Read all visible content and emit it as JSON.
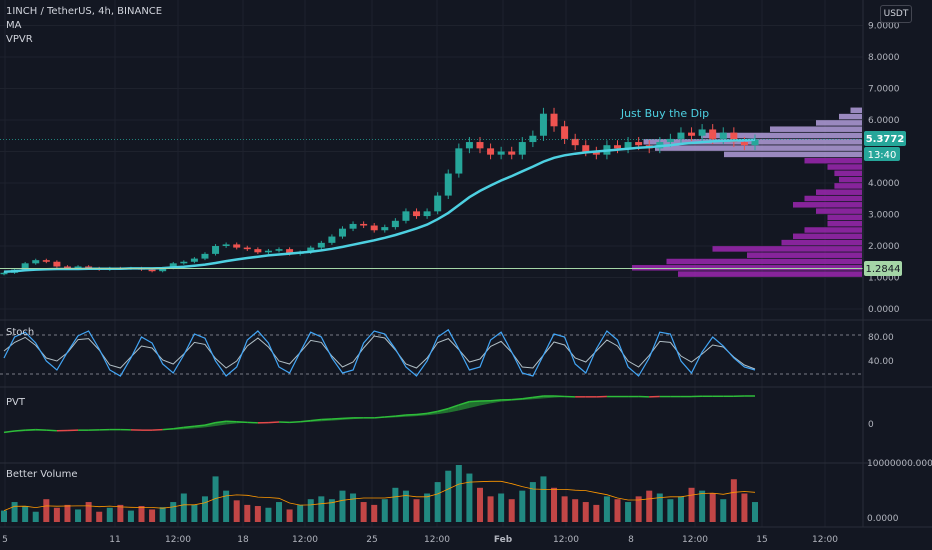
{
  "header": {
    "title": "1INCH / TetherUS, 4h, BINANCE",
    "indicators": [
      "MA",
      "VPVR"
    ],
    "currency_button": "USDT"
  },
  "annotation": "Just Buy the Dip",
  "price_labels": {
    "last": "5.3772",
    "countdown": "13:40",
    "ma_line": "1.2844"
  },
  "panes": {
    "stoch": "Stoch",
    "pvt": "PVT",
    "volume": "Better Volume"
  },
  "colors": {
    "up": "#26a69a",
    "down": "#ef5350",
    "ma": "#4dd0e1",
    "vpvr": "#9c27b0",
    "pvt_up": "#2ebd3a",
    "pvt_down": "#e24a4a",
    "bg": "#131722"
  },
  "chart_data": [
    {
      "type": "candlestick",
      "name": "price",
      "y_ticks": [
        "9.0000",
        "8.0000",
        "7.0000",
        "6.0000",
        "5.0000",
        "4.0000",
        "3.0000",
        "2.0000",
        "1.0000",
        "0.0000"
      ],
      "ylim": [
        0,
        9.5
      ],
      "x_tick_labels": [
        "5",
        "11",
        "12:00",
        "18",
        "12:00",
        "25",
        "12:00",
        "Feb",
        "12:00",
        "8",
        "12:00",
        "15",
        "12:00"
      ],
      "close": [
        1.15,
        1.25,
        1.45,
        1.55,
        1.5,
        1.35,
        1.3,
        1.35,
        1.3,
        1.25,
        1.3,
        1.28,
        1.3,
        1.25,
        1.2,
        1.3,
        1.45,
        1.5,
        1.6,
        1.75,
        2.0,
        2.05,
        1.95,
        1.9,
        1.8,
        1.85,
        1.9,
        1.75,
        1.8,
        1.95,
        2.1,
        2.3,
        2.55,
        2.7,
        2.65,
        2.5,
        2.6,
        2.8,
        3.1,
        2.95,
        3.1,
        3.6,
        4.3,
        5.1,
        5.3,
        5.1,
        4.9,
        5.0,
        4.9,
        5.3,
        5.5,
        6.2,
        5.8,
        5.4,
        5.2,
        5.0,
        4.9,
        5.2,
        5.1,
        5.3,
        5.2,
        5.1,
        5.3,
        5.4,
        5.6,
        5.5,
        5.7,
        5.4,
        5.6,
        5.3,
        5.2,
        5.38
      ],
      "ma": [
        1.18,
        1.2,
        1.23,
        1.25,
        1.26,
        1.27,
        1.27,
        1.27,
        1.28,
        1.28,
        1.28,
        1.28,
        1.29,
        1.29,
        1.29,
        1.3,
        1.32,
        1.34,
        1.37,
        1.41,
        1.46,
        1.52,
        1.57,
        1.62,
        1.66,
        1.7,
        1.73,
        1.76,
        1.79,
        1.82,
        1.86,
        1.91,
        1.97,
        2.04,
        2.11,
        2.18,
        2.26,
        2.35,
        2.45,
        2.56,
        2.68,
        2.85,
        3.05,
        3.3,
        3.55,
        3.75,
        3.92,
        4.08,
        4.22,
        4.37,
        4.52,
        4.68,
        4.8,
        4.88,
        4.93,
        4.97,
        5.0,
        5.03,
        5.06,
        5.09,
        5.12,
        5.14,
        5.17,
        5.2,
        5.24,
        5.27,
        5.3,
        5.32,
        5.34,
        5.35,
        5.36,
        5.37
      ],
      "last_price": "5.3772",
      "horizontal_line": 1.2844,
      "annotation": "Just Buy the Dip"
    },
    {
      "type": "bar",
      "name": "VPVR",
      "levels": [
        6.3,
        6.1,
        5.9,
        5.7,
        5.5,
        5.3,
        5.1,
        4.9,
        4.7,
        4.5,
        4.3,
        4.1,
        3.9,
        3.7,
        3.5,
        3.3,
        3.1,
        2.9,
        2.7,
        2.5,
        2.3,
        2.1,
        1.9,
        1.7,
        1.5,
        1.3,
        1.1
      ],
      "volumes": [
        5,
        10,
        20,
        40,
        70,
        95,
        90,
        60,
        25,
        15,
        12,
        10,
        12,
        20,
        25,
        30,
        20,
        15,
        15,
        25,
        30,
        35,
        65,
        50,
        85,
        100,
        80
      ]
    },
    {
      "type": "line",
      "name": "Stoch",
      "y_ticks": [
        "80.00",
        "40.00"
      ],
      "ylim": [
        0,
        100
      ],
      "k": [
        45,
        80,
        88,
        70,
        40,
        25,
        55,
        82,
        90,
        60,
        25,
        15,
        45,
        80,
        70,
        35,
        20,
        50,
        85,
        78,
        40,
        15,
        30,
        75,
        90,
        70,
        30,
        20,
        55,
        88,
        80,
        45,
        20,
        25,
        70,
        90,
        85,
        60,
        30,
        15,
        40,
        80,
        92,
        60,
        25,
        30,
        75,
        88,
        55,
        20,
        15,
        50,
        85,
        80,
        35,
        20,
        60,
        90,
        75,
        30,
        15,
        45,
        88,
        85,
        40,
        20,
        55,
        80,
        65,
        45,
        30,
        25
      ]
    },
    {
      "type": "area",
      "name": "PVT",
      "y_ticks": [
        "0"
      ],
      "values": [
        -30,
        -25,
        -22,
        -20,
        -22,
        -24,
        -23,
        -22,
        -22,
        -21,
        -20,
        -20,
        -21,
        -22,
        -22,
        -20,
        -17,
        -12,
        -8,
        -4,
        5,
        10,
        8,
        6,
        4,
        5,
        7,
        6,
        8,
        12,
        16,
        18,
        20,
        22,
        22,
        22,
        25,
        28,
        32,
        34,
        38,
        45,
        55,
        68,
        80,
        82,
        83,
        86,
        87,
        90,
        95,
        100,
        100,
        98,
        97,
        97,
        97,
        98,
        98,
        98,
        98,
        97,
        98,
        98,
        98,
        98,
        99,
        99,
        99,
        99,
        100,
        100
      ]
    },
    {
      "type": "bar",
      "name": "Better Volume",
      "y_ticks": [
        "10000000.0000",
        "0.0000"
      ],
      "values": [
        20,
        35,
        28,
        18,
        40,
        25,
        30,
        22,
        35,
        18,
        25,
        30,
        20,
        28,
        22,
        26,
        35,
        50,
        30,
        45,
        80,
        55,
        38,
        30,
        28,
        25,
        35,
        22,
        30,
        40,
        45,
        40,
        55,
        50,
        35,
        30,
        40,
        60,
        55,
        40,
        50,
        70,
        90,
        100,
        85,
        60,
        45,
        50,
        40,
        55,
        70,
        80,
        60,
        45,
        40,
        35,
        30,
        45,
        40,
        35,
        45,
        55,
        50,
        40,
        45,
        60,
        55,
        50,
        40,
        75,
        50,
        35
      ]
    }
  ]
}
